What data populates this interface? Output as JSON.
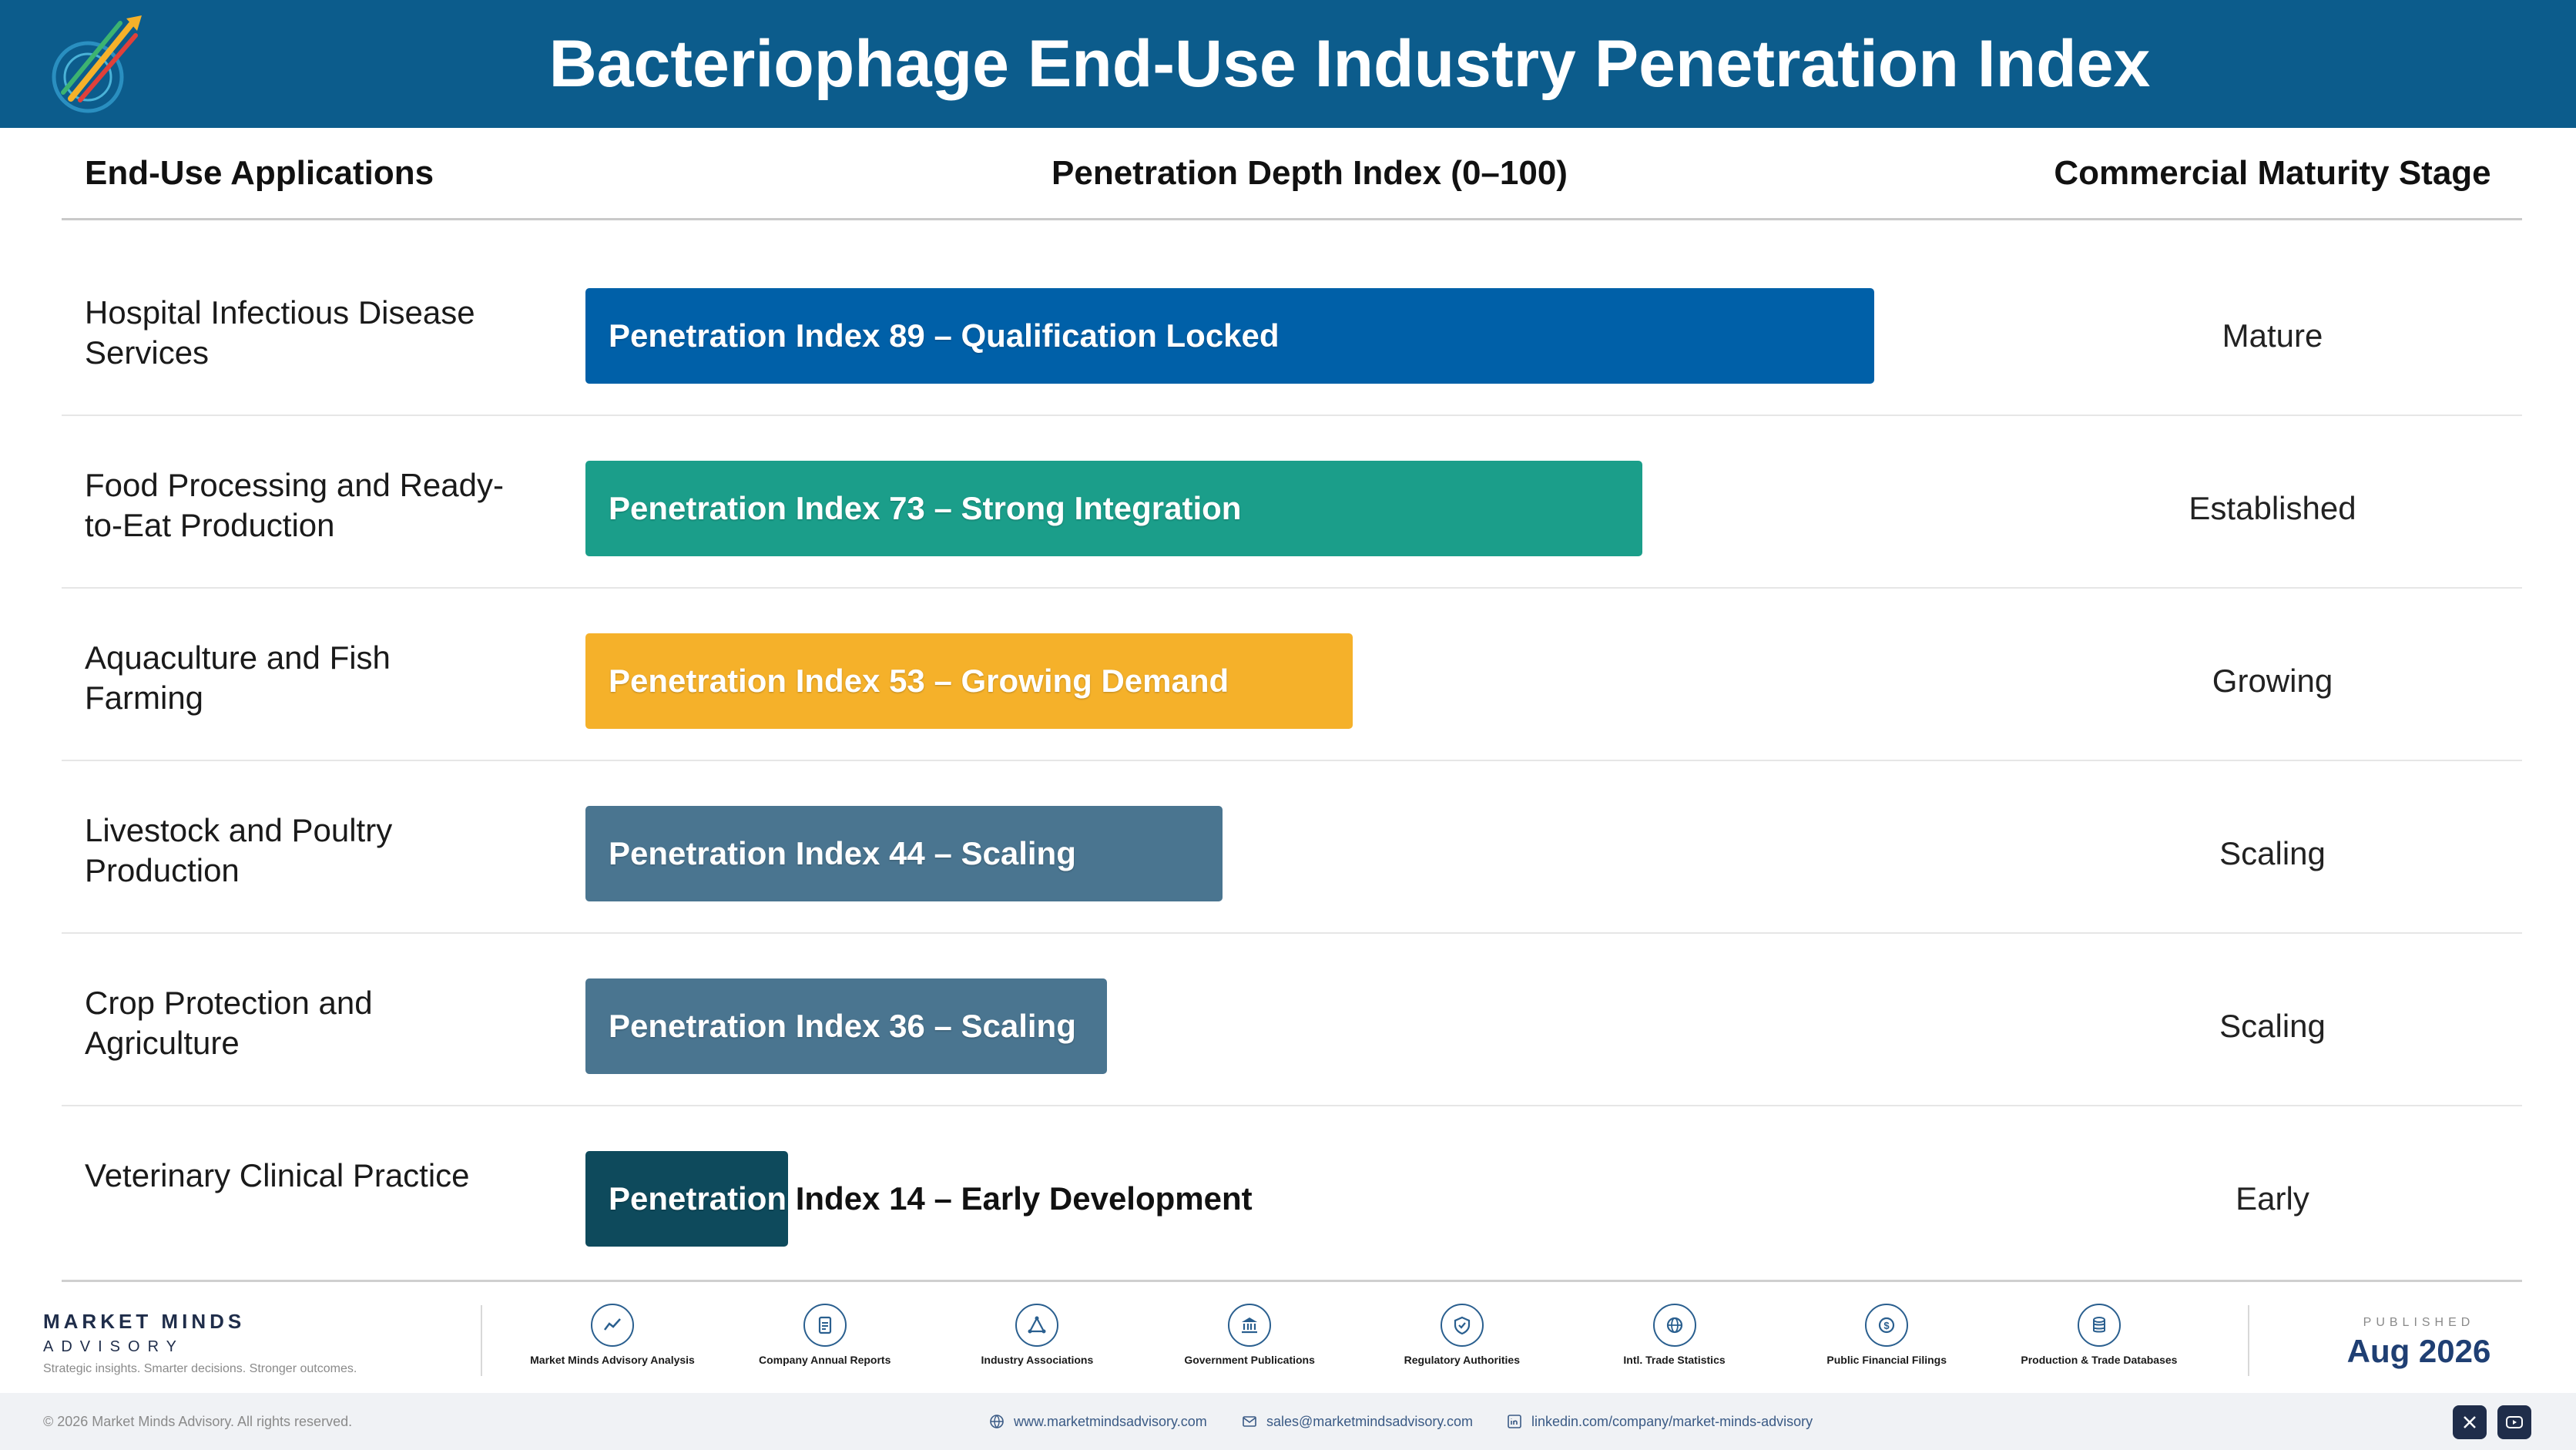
{
  "header": {
    "title": "Bacteriophage End-Use Industry Penetration Index"
  },
  "columns": {
    "applications": "End-Use Applications",
    "penetration": "Penetration Depth Index (0–100)",
    "stage": "Commercial Maturity Stage"
  },
  "chart_data": {
    "type": "bar",
    "orientation": "horizontal",
    "title": "Bacteriophage End-Use Industry Penetration Index",
    "xlabel": "Penetration Depth Index (0–100)",
    "xlim": [
      0,
      100
    ],
    "categories": [
      "Hospital Infectious Disease Services",
      "Food Processing and Ready-to-Eat Production",
      "Aquaculture and Fish Farming",
      "Livestock and Poultry Production",
      "Crop Protection and Agriculture",
      "Veterinary Clinical Practice"
    ],
    "values": [
      89,
      73,
      53,
      44,
      36,
      14
    ],
    "bar_labels": [
      "Penetration Index 89 – Qualification Locked",
      "Penetration Index 73 – Strong Integration",
      "Penetration Index 53 – Growing Demand",
      "Penetration Index 44 – Scaling",
      "Penetration Index 36 – Scaling",
      "Penetration Index 14 – Early Development"
    ],
    "stages": [
      "Mature",
      "Established",
      "Growing",
      "Scaling",
      "Scaling",
      "Early"
    ],
    "colors": [
      "#0060a8",
      "#1b9e8a",
      "#f5b12a",
      "#4a7590",
      "#4a7590",
      "#0e4a5c"
    ]
  },
  "rows": [
    {
      "app": "Hospital Infectious Disease Services",
      "label": "Penetration Index 89 – Qualification Locked",
      "stage": "Mature"
    },
    {
      "app": "Food Processing and Ready-to-Eat Production",
      "label": "Penetration Index 73 – Strong Integration",
      "stage": "Established"
    },
    {
      "app": "Aquaculture and Fish Farming",
      "label": "Penetration Index 53 – Growing Demand",
      "stage": "Growing"
    },
    {
      "app": "Livestock and Poultry Production",
      "label": "Penetration Index 44 – Scaling",
      "stage": "Scaling"
    },
    {
      "app": "Crop Protection and Agriculture",
      "label": "Penetration Index 36 – Scaling",
      "stage": "Scaling"
    },
    {
      "app": "Veterinary Clinical Practice",
      "label": "Penetration Index 14 – Early Development",
      "stage": "Early"
    }
  ],
  "footer": {
    "brand_name": "MARKET MINDS",
    "brand_sub": "ADVISORY",
    "brand_tag": "Strategic insights. Smarter decisions. Stronger outcomes.",
    "sources": [
      {
        "label": "Market Minds Advisory Analysis",
        "icon": "chart-line-icon"
      },
      {
        "label": "Company Annual Reports",
        "icon": "document-icon"
      },
      {
        "label": "Industry Associations",
        "icon": "network-icon"
      },
      {
        "label": "Government Publications",
        "icon": "bank-icon"
      },
      {
        "label": "Regulatory Authorities",
        "icon": "shield-icon"
      },
      {
        "label": "Intl. Trade Statistics",
        "icon": "globe-icon"
      },
      {
        "label": "Public Financial Filings",
        "icon": "coin-icon"
      },
      {
        "label": "Production & Trade Databases",
        "icon": "database-icon"
      }
    ],
    "published_label": "PUBLISHED",
    "published_date": "Aug 2026",
    "copyright": "© 2026 Market Minds Advisory. All rights reserved.",
    "website": "www.marketmindsadvisory.com",
    "email": "sales@marketmindsadvisory.com",
    "linkedin": "linkedin.com/company/market-minds-advisory"
  }
}
